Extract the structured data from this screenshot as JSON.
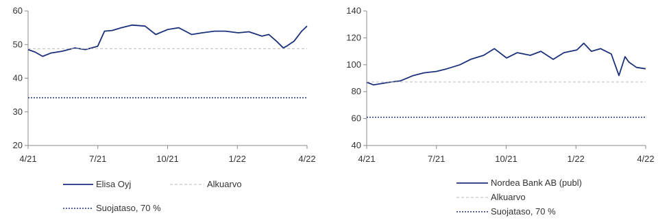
{
  "colors": {
    "series": "#1a2f7a",
    "baseline": "#b8b8b8",
    "protection": "#1a2f7a",
    "axis": "#888888"
  },
  "chart_data": [
    {
      "type": "line",
      "x_ticks": [
        "4/21",
        "7/21",
        "10/21",
        "1/22",
        "4/22"
      ],
      "x_range": [
        "2021-04-01",
        "2022-04-01"
      ],
      "ylim": [
        20,
        60
      ],
      "y_ticks": [
        20,
        30,
        40,
        50,
        60
      ],
      "grid": false,
      "legend_placement": "bottom",
      "series": [
        {
          "name": "Elisa Oyj",
          "style": "solid",
          "x": [
            "2021-04-01",
            "2021-04-10",
            "2021-04-20",
            "2021-05-01",
            "2021-05-15",
            "2021-06-01",
            "2021-06-15",
            "2021-07-01",
            "2021-07-10",
            "2021-07-20",
            "2021-08-01",
            "2021-08-15",
            "2021-09-01",
            "2021-09-15",
            "2021-10-01",
            "2021-10-15",
            "2021-11-01",
            "2021-11-15",
            "2021-12-01",
            "2021-12-15",
            "2022-01-01",
            "2022-01-15",
            "2022-02-01",
            "2022-02-10",
            "2022-02-20",
            "2022-03-01",
            "2022-03-05",
            "2022-03-15",
            "2022-03-25",
            "2022-04-01"
          ],
          "values": [
            48.5,
            47.8,
            46.5,
            47.5,
            48,
            49,
            48.5,
            49.5,
            54,
            54.2,
            55,
            55.8,
            55.5,
            53,
            54.5,
            55,
            53,
            53.5,
            54,
            54,
            53.5,
            53.8,
            52.5,
            53,
            51,
            49,
            49.5,
            51,
            54,
            55.5
          ]
        },
        {
          "name": "Alkuarvo",
          "style": "dashed",
          "x": [
            "2021-04-01",
            "2022-04-01"
          ],
          "values": [
            48.8,
            48.8
          ]
        },
        {
          "name": "Suojataso, 70 %",
          "style": "dotted",
          "x": [
            "2021-04-01",
            "2022-04-01"
          ],
          "values": [
            34.2,
            34.2
          ]
        }
      ]
    },
    {
      "type": "line",
      "x_ticks": [
        "4/21",
        "7/21",
        "10/21",
        "1/22",
        "4/22"
      ],
      "x_range": [
        "2021-04-01",
        "2022-04-01"
      ],
      "ylim": [
        40,
        140
      ],
      "y_ticks": [
        40,
        60,
        80,
        100,
        120,
        140
      ],
      "grid": false,
      "legend_placement": "bottom",
      "series": [
        {
          "name": "Nordea Bank AB (publ)",
          "style": "solid",
          "x": [
            "2021-04-01",
            "2021-04-10",
            "2021-04-20",
            "2021-05-01",
            "2021-05-15",
            "2021-06-01",
            "2021-06-15",
            "2021-07-01",
            "2021-07-15",
            "2021-08-01",
            "2021-08-15",
            "2021-09-01",
            "2021-09-15",
            "2021-10-01",
            "2021-10-15",
            "2021-11-01",
            "2021-11-15",
            "2021-12-01",
            "2021-12-15",
            "2022-01-01",
            "2022-01-10",
            "2022-01-20",
            "2022-02-01",
            "2022-02-15",
            "2022-02-25",
            "2022-03-05",
            "2022-03-10",
            "2022-03-20",
            "2022-04-01"
          ],
          "values": [
            87,
            85,
            86,
            87,
            88,
            92,
            94,
            95,
            97,
            100,
            104,
            107,
            112,
            105,
            109,
            107,
            110,
            104,
            109,
            111,
            116,
            110,
            112,
            108,
            92,
            106,
            102,
            98,
            97
          ]
        },
        {
          "name": "Alkuarvo",
          "style": "dashed",
          "x": [
            "2021-04-01",
            "2022-04-01"
          ],
          "values": [
            87.2,
            87.2
          ]
        },
        {
          "name": "Suojataso, 70 %",
          "style": "dotted",
          "x": [
            "2021-04-01",
            "2022-04-01"
          ],
          "values": [
            61,
            61
          ]
        }
      ]
    }
  ]
}
